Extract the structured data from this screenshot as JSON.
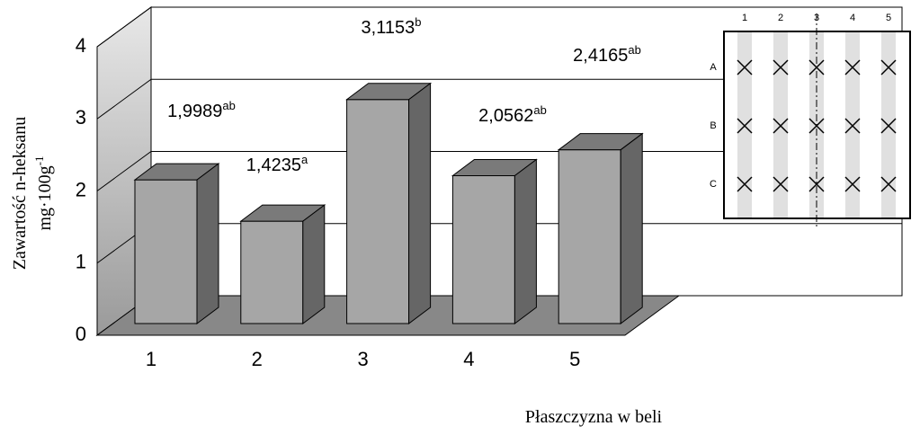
{
  "chart_data": {
    "type": "bar3d",
    "categories": [
      "1",
      "2",
      "3",
      "4",
      "5"
    ],
    "values": [
      1.9989,
      1.4235,
      3.1153,
      2.0562,
      2.4165
    ],
    "value_labels": [
      "1,9989",
      "1,4235",
      "3,1153",
      "2,0562",
      "2,4165"
    ],
    "value_letters": [
      "ab",
      "a",
      "b",
      "ab",
      "ab"
    ],
    "color": "#a6a6a6",
    "ylim": [
      0,
      4
    ],
    "yticks": [
      0,
      1,
      2,
      3,
      4
    ],
    "grid": true,
    "ylabel": [
      "Zawartość n-heksanu",
      "mg·100g"
    ],
    "ylabel_sup": "-1",
    "xlabel": "Płaszczyzna w beli"
  },
  "diagram": {
    "columns": [
      "1",
      "2",
      "3",
      "4",
      "5"
    ],
    "rows": [
      "A",
      "B",
      "C"
    ]
  }
}
